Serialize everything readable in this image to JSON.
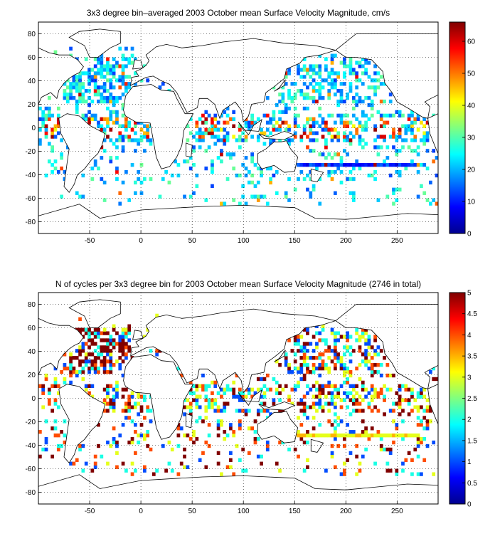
{
  "chart_data": [
    {
      "type": "heatmap",
      "title": "3x3 degree bin–averaged 2003 October mean Surface Velocity Magnitude, cm/s",
      "xlabel": "",
      "ylabel": "",
      "xlim": [
        -100,
        290
      ],
      "ylim": [
        -90,
        90
      ],
      "xticks": [
        -50,
        0,
        50,
        100,
        150,
        200,
        250
      ],
      "yticks": [
        80,
        60,
        40,
        20,
        0,
        -20,
        -40,
        -60,
        -80
      ],
      "grid": true,
      "bin_size_deg": 3,
      "colorbar": {
        "range": [
          0,
          66
        ],
        "ticks": [
          60,
          50,
          40,
          30,
          20,
          10,
          0
        ],
        "colormap": "jet",
        "location": "right"
      },
      "data_summary": "Bin-averaged velocity magnitude over global ocean; mostly 10–30 cm/s, with higher values (>40) in equatorial Pacific and western boundary currents; a zonal band near 32S from ~150 to 270 E of about 5–15 cm/s.",
      "samples": [
        {
          "x": -55,
          "y": 35,
          "value": 20
        },
        {
          "x": -40,
          "y": 45,
          "value": 25
        },
        {
          "x": -70,
          "y": 40,
          "value": 45
        },
        {
          "x": -20,
          "y": 40,
          "value": 18
        },
        {
          "x": 40,
          "y": 0,
          "value": 55
        },
        {
          "x": 55,
          "y": 5,
          "value": 40
        },
        {
          "x": 90,
          "y": -5,
          "value": 45
        },
        {
          "x": 150,
          "y": 35,
          "value": 50
        },
        {
          "x": 160,
          "y": 0,
          "value": 40
        },
        {
          "x": 230,
          "y": 5,
          "value": 55
        },
        {
          "x": 250,
          "y": 5,
          "value": 60
        },
        {
          "x": 200,
          "y": 45,
          "value": 20
        },
        {
          "x": 220,
          "y": -32,
          "value": 8
        },
        {
          "x": 90,
          "y": -40,
          "value": 20
        },
        {
          "x": 20,
          "y": -40,
          "value": 50
        },
        {
          "x": 180,
          "y": -55,
          "value": 50
        }
      ]
    },
    {
      "type": "heatmap",
      "title": "N of cycles per 3x3 degree bin for 2003 October mean Surface Velocity Magnitude (2746 in total)",
      "xlabel": "",
      "ylabel": "",
      "xlim": [
        -100,
        290
      ],
      "ylim": [
        -90,
        90
      ],
      "xticks": [
        -50,
        0,
        50,
        100,
        150,
        200,
        250
      ],
      "yticks": [
        80,
        60,
        40,
        20,
        0,
        -20,
        -40,
        -60,
        -80
      ],
      "grid": true,
      "bin_size_deg": 3,
      "total_cycles": 2746,
      "colorbar": {
        "range": [
          0,
          5
        ],
        "ticks": [
          "5",
          "4.5",
          "4",
          "3.5",
          "3",
          "2.5",
          "2",
          "1.5",
          "1",
          "0.5",
          "0"
        ],
        "colormap": "jet",
        "location": "right"
      },
      "data_summary": "Number of float cycles per bin; values mostly 1–5, with the highest counts (5) in the North Atlantic, Arabian Sea and Northeast Pacific.",
      "samples": [
        {
          "x": -50,
          "y": 45,
          "value": 5
        },
        {
          "x": -30,
          "y": 50,
          "value": 5
        },
        {
          "x": -60,
          "y": 55,
          "value": 4
        },
        {
          "x": -20,
          "y": 40,
          "value": 3
        },
        {
          "x": 60,
          "y": 10,
          "value": 5
        },
        {
          "x": 90,
          "y": -40,
          "value": 4
        },
        {
          "x": 150,
          "y": 30,
          "value": 3
        },
        {
          "x": 230,
          "y": 55,
          "value": 5
        },
        {
          "x": 220,
          "y": -32,
          "value": 3
        },
        {
          "x": 180,
          "y": 10,
          "value": 2
        },
        {
          "x": 0,
          "y": -30,
          "value": 1
        },
        {
          "x": 120,
          "y": -45,
          "value": 2
        }
      ]
    }
  ]
}
